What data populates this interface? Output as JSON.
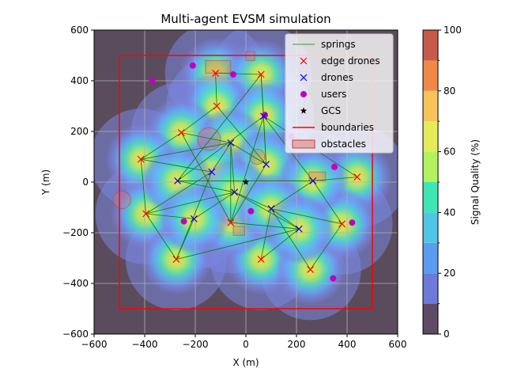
{
  "chart_data": {
    "type": "scatter",
    "title": "Multi-agent EVSM simulation",
    "xlabel": "X (m)",
    "ylabel": "Y (m)",
    "xlim": [
      -600,
      600
    ],
    "ylim": [
      -600,
      600
    ],
    "xticks": [
      -600,
      -400,
      -200,
      0,
      200,
      400,
      600
    ],
    "yticks": [
      -600,
      -400,
      -200,
      0,
      200,
      400,
      600
    ],
    "grid": true,
    "legend_position": "top-right",
    "colorbar": {
      "label": "Signal Quality (%)",
      "range": [
        0,
        100
      ],
      "ticks": [
        0,
        20,
        40,
        60,
        80,
        100
      ],
      "colormap": "turbo",
      "levels": 10
    },
    "colors": {
      "springs": "#008000",
      "edge_drones": "#ff0000",
      "drones": "#0000ff",
      "users": "#c000c0",
      "gcs": "#000000",
      "boundaries": "#ff0000",
      "obstacles": "#e07060"
    },
    "legend": [
      {
        "label": "springs",
        "kind": "line",
        "color": "#008000"
      },
      {
        "label": "edge drones",
        "kind": "x",
        "color": "#ff0000"
      },
      {
        "label": "drones",
        "kind": "x",
        "color": "#0000ff"
      },
      {
        "label": "users",
        "kind": "dot",
        "color": "#c000c0"
      },
      {
        "label": "GCS",
        "kind": "star",
        "color": "#000000"
      },
      {
        "label": "boundaries",
        "kind": "line",
        "color": "#ff0000"
      },
      {
        "label": "obstacles",
        "kind": "patch",
        "color": "#e07060"
      }
    ],
    "boundary": [
      [
        -500,
        -500
      ],
      [
        500,
        -500
      ],
      [
        500,
        500
      ],
      [
        -500,
        500
      ]
    ],
    "edge_drones": [
      [
        -120,
        430
      ],
      [
        60,
        425
      ],
      [
        -115,
        300
      ],
      [
        -255,
        195
      ],
      [
        -415,
        90
      ],
      [
        440,
        20
      ],
      [
        -395,
        -125
      ],
      [
        -275,
        -305
      ],
      [
        60,
        -305
      ],
      [
        255,
        -345
      ],
      [
        380,
        -165
      ],
      [
        -60,
        -160
      ]
    ],
    "drones": [
      [
        70,
        260
      ],
      [
        -60,
        155
      ],
      [
        80,
        70
      ],
      [
        -135,
        40
      ],
      [
        -270,
        5
      ],
      [
        265,
        5
      ],
      [
        -45,
        -40
      ],
      [
        100,
        -105
      ],
      [
        -205,
        -145
      ],
      [
        210,
        -185
      ]
    ],
    "users": [
      [
        -210,
        460
      ],
      [
        -370,
        400
      ],
      [
        -50,
        425
      ],
      [
        75,
        265
      ],
      [
        180,
        180
      ],
      [
        350,
        60
      ],
      [
        -245,
        -155
      ],
      [
        20,
        -115
      ],
      [
        420,
        -160
      ],
      [
        345,
        -380
      ]
    ],
    "gcs": [
      0,
      0
    ],
    "springs": [
      [
        0,
        1
      ],
      [
        0,
        2
      ],
      [
        1,
        14
      ],
      [
        2,
        14
      ],
      [
        2,
        3
      ],
      [
        1,
        12
      ],
      [
        3,
        4
      ],
      [
        3,
        13
      ],
      [
        3,
        11
      ],
      [
        4,
        13
      ],
      [
        4,
        15
      ],
      [
        4,
        6
      ],
      [
        15,
        13
      ],
      [
        15,
        6
      ],
      [
        15,
        7
      ],
      [
        13,
        14
      ],
      [
        13,
        11
      ],
      [
        13,
        18
      ],
      [
        14,
        11
      ],
      [
        14,
        12
      ],
      [
        11,
        12
      ],
      [
        12,
        17
      ],
      [
        12,
        16
      ],
      [
        16,
        17
      ],
      [
        16,
        18
      ],
      [
        18,
        20
      ],
      [
        18,
        21
      ],
      [
        20,
        7
      ],
      [
        20,
        6
      ],
      [
        6,
        7
      ],
      [
        7,
        21
      ],
      [
        21,
        8
      ],
      [
        21,
        19
      ],
      [
        21,
        11
      ],
      [
        19,
        8
      ],
      [
        19,
        9
      ],
      [
        19,
        10
      ],
      [
        17,
        10
      ],
      [
        17,
        5
      ],
      [
        17,
        16
      ],
      [
        9,
        10
      ],
      [
        12,
        5
      ],
      [
        1,
        16
      ],
      [
        18,
        6
      ],
      [
        19,
        18
      ],
      [
        17,
        19
      ]
    ],
    "obstacles": [
      {
        "shape": "rect",
        "x": [
          -160,
          -60
        ],
        "y": [
          430,
          480
        ]
      },
      {
        "shape": "rect",
        "x": [
          0,
          35
        ],
        "y": [
          480,
          515
        ]
      },
      {
        "shape": "circle",
        "cx": -145,
        "cy": 170,
        "r": 45
      },
      {
        "shape": "circle",
        "cx": 45,
        "cy": 100,
        "r": 30
      },
      {
        "shape": "circle",
        "cx": -490,
        "cy": -70,
        "r": 35
      },
      {
        "shape": "rect",
        "x": [
          250,
          315
        ],
        "y": [
          5,
          40
        ]
      },
      {
        "shape": "rect",
        "x": [
          -50,
          -5
        ],
        "y": [
          -210,
          -175
        ]
      }
    ]
  }
}
